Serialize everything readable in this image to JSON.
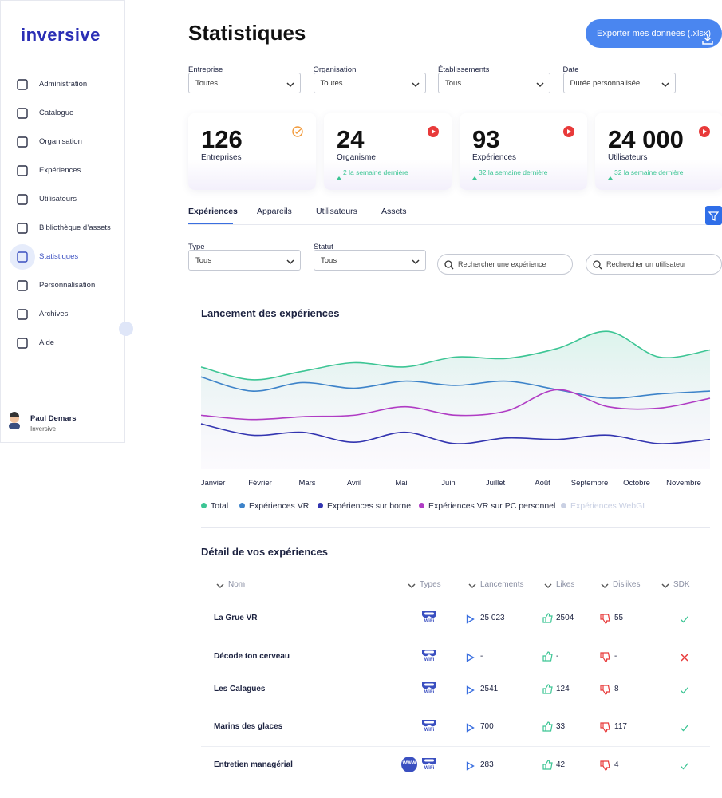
{
  "sidebar": {
    "logo": "inversive",
    "nav": [
      "Administration",
      "Catalogue",
      "Organisation",
      "Expériences",
      "Utilisateurs",
      "Bibliothèque d’assets",
      "Statistiques",
      "Personnalisation",
      "Archives",
      "Aide"
    ],
    "active": 6,
    "user": {
      "name": "Paul Demars",
      "company": "Inversive"
    }
  },
  "header": {
    "title": "Statistiques",
    "export": "Exporter mes données (.xlsx)"
  },
  "filters": [
    {
      "label": "Entreprise",
      "value": "Toutes"
    },
    {
      "label": "Organisation",
      "value": "Toutes"
    },
    {
      "label": "Établissements",
      "value": "Tous"
    },
    {
      "label": "Date",
      "value": "Durée personnalisée"
    }
  ],
  "kpis": [
    {
      "value": "126",
      "label": "Entreprises"
    },
    {
      "value": "24",
      "label": "Organisme",
      "delta": "2 la semaine dernière"
    },
    {
      "value": "93",
      "label": "Expériences",
      "delta": "32 la semaine dernière"
    },
    {
      "value": "24 000",
      "label": "Utilisateurs",
      "delta": "32 la semaine dernière"
    }
  ],
  "tabs": [
    "Expériences",
    "Appareils",
    "Utilisateurs",
    "Assets"
  ],
  "active_tab": 0,
  "subfilters": [
    {
      "label": "Type",
      "value": "Tous"
    },
    {
      "label": "Statut",
      "value": "Tous"
    }
  ],
  "searches": [
    "Rechercher une expérience",
    "Rechercher un utilisateur"
  ],
  "chart_data": {
    "type": "line",
    "title": "Lancement des expériences",
    "categories": [
      "Janvier",
      "Février",
      "Mars",
      "Avril",
      "Mai",
      "Juin",
      "Juillet",
      "Août",
      "Septembre",
      "Octobre",
      "Novembre"
    ],
    "ylim": [
      0,
      100
    ],
    "series": [
      {
        "name": "Total",
        "color": "#3cc594",
        "values": [
          72,
          63,
          69,
          75,
          72,
          79,
          78,
          85,
          97,
          79,
          84
        ]
      },
      {
        "name": "Expériences VR",
        "color": "#3d83c9",
        "values": [
          65,
          55,
          61,
          57,
          62,
          59,
          62,
          56,
          50,
          53,
          55
        ]
      },
      {
        "name": "Expériences sur borne",
        "color": "#3335b0",
        "values": [
          32,
          24,
          26,
          19,
          26,
          18,
          22,
          21,
          24,
          18,
          21
        ]
      },
      {
        "name": "Expériences VR sur PC personnel",
        "color": "#b03cc4",
        "values": [
          38,
          35,
          37,
          38,
          44,
          38,
          41,
          56,
          44,
          43,
          50
        ]
      },
      {
        "name": "Expériences WebGL",
        "color": "#c9d0e3",
        "visible": false,
        "values": [
          null,
          null,
          null,
          null,
          null,
          null,
          null,
          null,
          null,
          null,
          null
        ]
      }
    ]
  },
  "table": {
    "title": "Détail de vos expériences",
    "columns": [
      "Nom",
      "Types",
      "Lancements",
      "Likes",
      "Dislikes",
      "SDK"
    ],
    "rows": [
      {
        "name": "La Grue VR",
        "types": [
          "WiFi"
        ],
        "launches": "25 023",
        "likes": "2504",
        "dislikes": "55",
        "sdk": true
      },
      {
        "name": "Décode ton cerveau",
        "types": [
          "WiFi"
        ],
        "launches": "-",
        "likes": "-",
        "dislikes": "-",
        "sdk": false
      },
      {
        "name": "Les Calagues",
        "types": [
          "WiFi"
        ],
        "launches": "2541",
        "likes": "124",
        "dislikes": "8",
        "sdk": true
      },
      {
        "name": "Marins des glaces",
        "types": [
          "WiFi"
        ],
        "launches": "700",
        "likes": "33",
        "dislikes": "117",
        "sdk": true
      },
      {
        "name": "Entretien managérial",
        "types": [
          "WWW",
          "WiFi"
        ],
        "launches": "283",
        "likes": "42",
        "dislikes": "4",
        "sdk": true
      }
    ]
  }
}
